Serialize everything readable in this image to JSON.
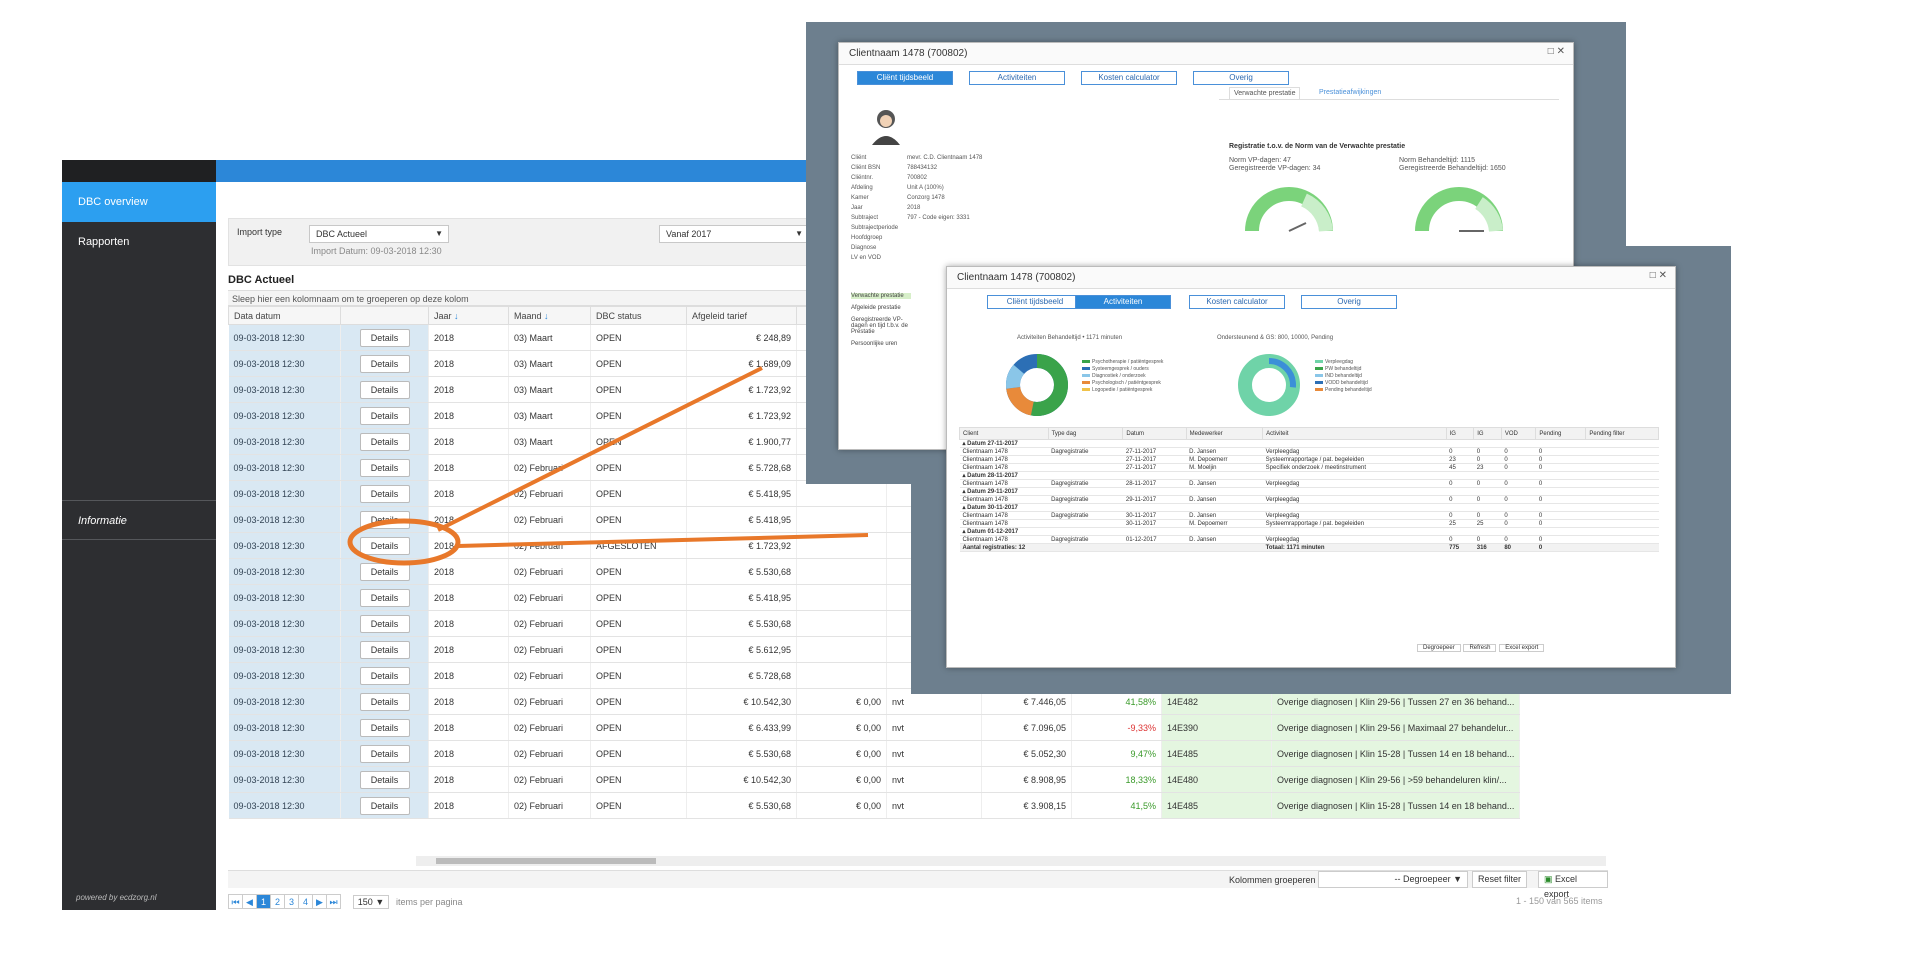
{
  "sidebar": {
    "items": [
      {
        "label": "DBC overview"
      },
      {
        "label": "Rapporten"
      }
    ],
    "info_label": "Informatie",
    "powered": "powered by ecdzorg.nl"
  },
  "filters": {
    "import_type_label": "Import type",
    "import_type_value": "DBC Actueel",
    "import_date": "Import Datum: 09-03-2018 12:30",
    "period_value": "Vanaf 2017"
  },
  "page_title": "DBC Actueel",
  "group_hint": "Sleep hier een kolomnaam om te groeperen op deze kolom",
  "columns": [
    "Data datum",
    "",
    "Jaar",
    "Maand",
    "DBC status",
    "Afgeleid tarief"
  ],
  "details_label": "Details",
  "rows": [
    {
      "date": "09-03-2018 12:30",
      "year": "2018",
      "month": "03) Maart",
      "status": "OPEN",
      "tarief": "€ 248,89"
    },
    {
      "date": "09-03-2018 12:30",
      "year": "2018",
      "month": "03) Maart",
      "status": "OPEN",
      "tarief": "€ 1.689,09"
    },
    {
      "date": "09-03-2018 12:30",
      "year": "2018",
      "month": "03) Maart",
      "status": "OPEN",
      "tarief": "€ 1.723,92"
    },
    {
      "date": "09-03-2018 12:30",
      "year": "2018",
      "month": "03) Maart",
      "status": "OPEN",
      "tarief": "€ 1.723,92"
    },
    {
      "date": "09-03-2018 12:30",
      "year": "2018",
      "month": "03) Maart",
      "status": "OPEN",
      "tarief": "€ 1.900,77"
    },
    {
      "date": "09-03-2018 12:30",
      "year": "2018",
      "month": "02) Februari",
      "status": "OPEN",
      "tarief": "€ 5.728,68"
    },
    {
      "date": "09-03-2018 12:30",
      "year": "2018",
      "month": "02) Februari",
      "status": "OPEN",
      "tarief": "€ 5.418,95"
    },
    {
      "date": "09-03-2018 12:30",
      "year": "2018",
      "month": "02) Februari",
      "status": "OPEN",
      "tarief": "€ 5.418,95"
    },
    {
      "date": "09-03-2018 12:30",
      "year": "2018",
      "month": "02) Februari",
      "status": "AFGESLOTEN",
      "tarief": "€ 1.723,92"
    },
    {
      "date": "09-03-2018 12:30",
      "year": "2018",
      "month": "02) Februari",
      "status": "OPEN",
      "tarief": "€ 5.530,68"
    },
    {
      "date": "09-03-2018 12:30",
      "year": "2018",
      "month": "02) Februari",
      "status": "OPEN",
      "tarief": "€ 5.418,95"
    },
    {
      "date": "09-03-2018 12:30",
      "year": "2018",
      "month": "02) Februari",
      "status": "OPEN",
      "tarief": "€ 5.530,68"
    },
    {
      "date": "09-03-2018 12:30",
      "year": "2018",
      "month": "02) Februari",
      "status": "OPEN",
      "tarief": "€ 5.612,95"
    },
    {
      "date": "09-03-2018 12:30",
      "year": "2018",
      "month": "02) Februari",
      "status": "OPEN",
      "tarief": "€ 5.728,68"
    },
    {
      "date": "09-03-2018 12:30",
      "year": "2018",
      "month": "02) Februari",
      "status": "OPEN",
      "tarief": "€ 10.542,30"
    },
    {
      "date": "09-03-2018 12:30",
      "year": "2018",
      "month": "02) Februari",
      "status": "OPEN",
      "tarief": "€ 6.433,99"
    },
    {
      "date": "09-03-2018 12:30",
      "year": "2018",
      "month": "02) Februari",
      "status": "OPEN",
      "tarief": "€ 5.530,68"
    },
    {
      "date": "09-03-2018 12:30",
      "year": "2018",
      "month": "02) Februari",
      "status": "OPEN",
      "tarief": "€ 10.542,30"
    },
    {
      "date": "09-03-2018 12:30",
      "year": "2018",
      "month": "02) Februari",
      "status": "OPEN",
      "tarief": "€ 5.530,68"
    }
  ],
  "extra_rows": [
    {
      "c1": "€ 0,00",
      "c2": "nvt",
      "c3": "€ 7.446,05",
      "pct": "41,58%",
      "pctColor": "#3a9a2a",
      "code": "14E482",
      "desc": "Overige diagnosen | Klin 29-56 | Tussen 27 en 36 behand..."
    },
    {
      "c1": "€ 0,00",
      "c2": "nvt",
      "c3": "€ 7.096,05",
      "pct": "-9,33%",
      "pctColor": "#d33",
      "code": "14E390",
      "desc": "Overige diagnosen | Klin 29-56 | Maximaal 27 behandelur..."
    },
    {
      "c1": "€ 0,00",
      "c2": "nvt",
      "c3": "€ 5.052,30",
      "pct": "9,47%",
      "pctColor": "#3a9a2a",
      "code": "14E485",
      "desc": "Overige diagnosen | Klin 15-28 | Tussen 14 en 18 behand..."
    },
    {
      "c1": "€ 0,00",
      "c2": "nvt",
      "c3": "€ 8.908,95",
      "pct": "18,33%",
      "pctColor": "#3a9a2a",
      "code": "14E480",
      "desc": "Overige diagnosen | Klin 29-56 | >59 behandeluren klin/..."
    },
    {
      "c1": "€ 0,00",
      "c2": "nvt",
      "c3": "€ 3.908,15",
      "pct": "41,5%",
      "pctColor": "#3a9a2a",
      "code": "14E485",
      "desc": "Overige diagnosen | Klin 15-28 | Tussen 14 en 18 behand..."
    }
  ],
  "toolbar": {
    "group_label": "Kolommen groeperen",
    "degroup": "-- Degroepeer",
    "reset": "Reset filter",
    "excel": "Excel export",
    "items_label": "items per pagina",
    "page_size": "150",
    "count": "1 - 150 van 565 items"
  },
  "pages": [
    "1",
    "2",
    "3",
    "4"
  ],
  "popup1": {
    "title": "Clientnaam 1478 (700802)",
    "tabs": [
      "Cliënt tijdsbeeld",
      "Activiteiten",
      "Kosten calculator",
      "Overig"
    ],
    "subtabs": [
      "Verwachte prestatie",
      "Prestatieafwijkingen"
    ],
    "info_labels": [
      "Cliënt",
      "Cliënt BSN",
      "Cliëntnr.",
      "Afdeling",
      "Kamer",
      "Jaar",
      "Subtraject",
      "Subtrajectperiode",
      "Hoofdgroep",
      "Diagnose",
      "LV en VOD"
    ],
    "info_values": [
      "mevr. C.D. Clientnaam 1478",
      "788434132",
      "700802",
      "Unit A (100%)",
      "Conzorg 1478",
      "2018",
      "797 - Code eigen: 3331",
      "",
      "",
      "",
      ""
    ],
    "side_labels": [
      "Verwachte prestatie",
      "Afgeleide prestatie",
      "Geregistreerde VP-dagen en tijd t.b.v. de Prestatie",
      "Persoonlijke uren"
    ],
    "norm_title": "Registratie t.o.v. de Norm van de Verwachte prestatie",
    "norm_vp": "Norm VP-dagen: 47",
    "reg_vp": "Geregistreerde VP-dagen: 34",
    "norm_bt": "Norm Behandeltijd: 1115",
    "reg_bt": "Geregistreerde Behandeltijd: 1650"
  },
  "popup2": {
    "title": "Clientnaam 1478 (700802)",
    "tabs": [
      "Cliënt tijdsbeeld",
      "Activiteiten",
      "Kosten calculator",
      "Overig"
    ],
    "chart1_title": "Activiteiten Behandeltijd • 1171 minuten",
    "chart2_title": "Ondersteunend & GS: 800, 10000, Pending",
    "legend1": [
      "Psychotherapie / patiëntgesprek",
      "Systeemgesprek / ouders",
      "Diagnostiek / onderzoek",
      "Psychologisch / patiëntgesprek",
      "Logopedie / patiëntgesprek"
    ],
    "legend2": [
      "Verpleegdag",
      "PW behandeltijd",
      "IND behandeltijd",
      "VODD behandeltijd",
      "Pending behandeltijd"
    ],
    "table_headers": [
      "Client",
      "Type dag",
      "Datum",
      "Medewerker",
      "Activiteit",
      "IG",
      "IG",
      "VOD",
      "Pending",
      "Pending filter"
    ],
    "groups": [
      {
        "label": "Datum 27-11-2017",
        "rows": [
          [
            "Clientnaam 1478",
            "Dagregistratie",
            "27-11-2017",
            "D. Jansen",
            "Verpleegdag",
            "0",
            "0",
            "0",
            "0"
          ],
          [
            "Clientnaam 1478",
            "",
            "27-11-2017",
            "M. Depoemerr",
            "Systeemrapportage / pat. begeleiden",
            "23",
            "0",
            "0",
            "0"
          ],
          [
            "Clientnaam 1478",
            "",
            "27-11-2017",
            "M. Moeljin",
            "Specifiek onderzoek / meetinstrument",
            "45",
            "23",
            "0",
            "0"
          ]
        ]
      },
      {
        "label": "Datum 28-11-2017",
        "rows": [
          [
            "Clientnaam 1478",
            "Dagregistratie",
            "28-11-2017",
            "D. Jansen",
            "Verpleegdag",
            "0",
            "0",
            "0",
            "0"
          ]
        ]
      },
      {
        "label": "Datum 29-11-2017",
        "rows": [
          [
            "Clientnaam 1478",
            "Dagregistratie",
            "29-11-2017",
            "D. Jansen",
            "Verpleegdag",
            "0",
            "0",
            "0",
            "0"
          ]
        ]
      },
      {
        "label": "Datum 30-11-2017",
        "rows": [
          [
            "Clientnaam 1478",
            "Dagregistratie",
            "30-11-2017",
            "D. Jansen",
            "Verpleegdag",
            "0",
            "0",
            "0",
            "0"
          ],
          [
            "Clientnaam 1478",
            "",
            "30-11-2017",
            "M. Depoemerr",
            "Systeemrapportage / pat. begeleiden",
            "25",
            "25",
            "0",
            "0"
          ]
        ]
      },
      {
        "label": "Datum 01-12-2017",
        "rows": [
          [
            "Clientnaam 1478",
            "Dagregistratie",
            "01-12-2017",
            "D. Jansen",
            "Verpleegdag",
            "0",
            "0",
            "0",
            "0"
          ]
        ]
      }
    ],
    "total_label": "Aantal registraties: 12",
    "total_min": "Totaal: 1171 minuten",
    "totals": [
      "775",
      "316",
      "80",
      "0"
    ],
    "buttons": [
      "Degroepeer",
      "Refresh",
      "Excel export"
    ]
  }
}
